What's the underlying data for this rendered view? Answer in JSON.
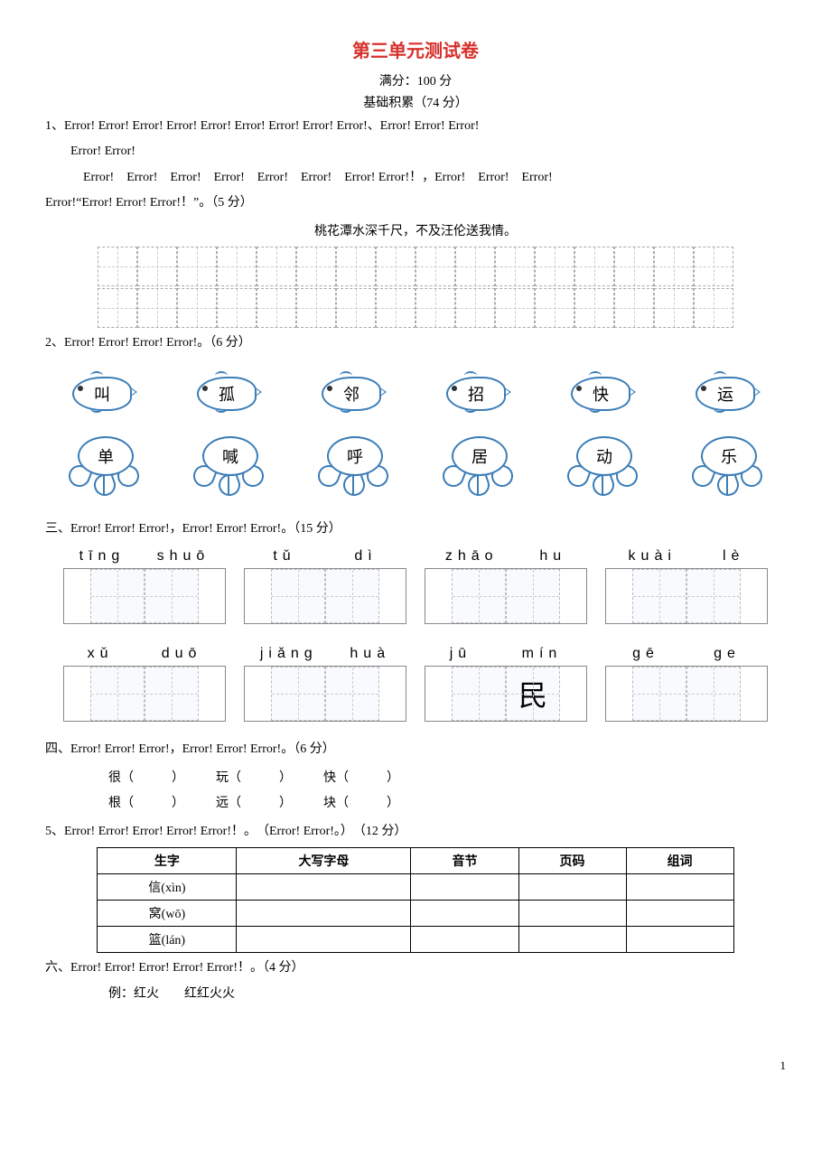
{
  "title": "第三单元测试卷",
  "title_color": "#d6302b",
  "full_score_label": "满分：100 分",
  "section_label": "基础积累（74 分）",
  "q1": {
    "prefix": "1、",
    "err": "Error!",
    "tail_text": "（5 分）",
    "poem": "桃花潭水深千尺，不及汪伦送我情。",
    "grid_cols": 16,
    "grid_rows": 2
  },
  "q2": {
    "prefix": "2、",
    "err": "Error!",
    "tail_text": "（6 分）",
    "fish_chars": [
      "叫",
      "孤",
      "邻",
      "招",
      "快",
      "运"
    ],
    "flower_chars": [
      "单",
      "喊",
      "呼",
      "居",
      "动",
      "乐"
    ]
  },
  "q3": {
    "prefix": "三、",
    "err": "Error!",
    "tail_text": "（15 分）",
    "row1": [
      {
        "pinyin": [
          "tīng",
          "shuō"
        ],
        "chars": [
          "",
          ""
        ]
      },
      {
        "pinyin": [
          "tǔ",
          "dì"
        ],
        "chars": [
          "",
          ""
        ]
      },
      {
        "pinyin": [
          "zhāo",
          "hu"
        ],
        "chars": [
          "",
          ""
        ]
      },
      {
        "pinyin": [
          "kuài",
          "lè"
        ],
        "chars": [
          "",
          ""
        ]
      }
    ],
    "row2": [
      {
        "pinyin": [
          "xǔ",
          "duō"
        ],
        "chars": [
          "",
          ""
        ]
      },
      {
        "pinyin": [
          "jiǎng",
          "huà"
        ],
        "chars": [
          "",
          ""
        ]
      },
      {
        "pinyin": [
          "jū",
          "mín"
        ],
        "chars": [
          "",
          "民"
        ]
      },
      {
        "pinyin": [
          "gē",
          "ge"
        ],
        "chars": [
          "",
          ""
        ]
      }
    ]
  },
  "q4": {
    "prefix": "四、",
    "err": "Error!",
    "tail_text": "（6 分）",
    "pairs_top": [
      "很（　　　）",
      "玩（　　　）",
      "快（　　　）"
    ],
    "pairs_bot": [
      "根（　　　）",
      "远（　　　）",
      "块（　　　）"
    ]
  },
  "q5": {
    "prefix": "5、",
    "err": "Error!",
    "mid": "（Error! Error!。）",
    "tail_text": "（12 分）",
    "headers": [
      "生字",
      "大写字母",
      "音节",
      "页码",
      "组词"
    ],
    "rows": [
      [
        "信(xìn)",
        "",
        "",
        "",
        ""
      ],
      [
        "窝(wō)",
        "",
        "",
        "",
        ""
      ],
      [
        "篮(lán)",
        "",
        "",
        "",
        ""
      ]
    ]
  },
  "q6": {
    "prefix": "六、",
    "err": "Error!",
    "tail_text": "（4 分）",
    "example": "例：红火　　红红火火"
  },
  "page_number": "1"
}
